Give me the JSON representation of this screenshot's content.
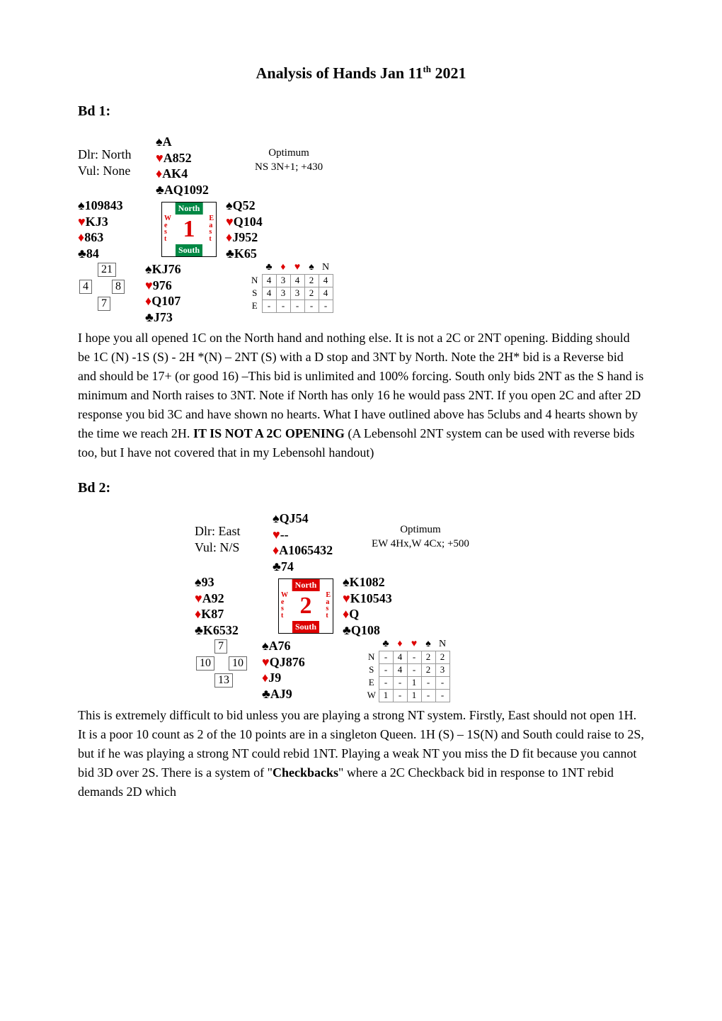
{
  "title": "Analysis of Hands Jan 11",
  "title_sup": "th",
  "title_year": " 2021",
  "boards": [
    {
      "label": "Bd 1:",
      "dealer": "Dlr: North",
      "vul": "Vul: None",
      "vul_class": "bg-none",
      "optimum1": "Optimum",
      "optimum2": "NS 3N+1; +430",
      "board_num": "1",
      "north": {
        "s": "A",
        "h": "A852",
        "d": "AK4",
        "c": "AQ1092"
      },
      "west": {
        "s": "109843",
        "h": "KJ3",
        "d": "863",
        "c": "84"
      },
      "east": {
        "s": "Q52",
        "h": "Q104",
        "d": "J952",
        "c": "K65"
      },
      "south": {
        "s": "KJ76",
        "h": "976",
        "d": "Q107",
        "c": "J73"
      },
      "hcp": {
        "n": "21",
        "w": "4",
        "e": "8",
        "s": "7"
      },
      "makeable": {
        "header": [
          "♣",
          "♦",
          "♥",
          "♠",
          "N"
        ],
        "rows": [
          [
            "N",
            "4",
            "3",
            "4",
            "2",
            "4"
          ],
          [
            "S",
            "4",
            "3",
            "3",
            "2",
            "4"
          ],
          [
            "E",
            "-",
            "-",
            "-",
            "-",
            "-"
          ]
        ]
      },
      "para": " I hope you all opened 1C on the North hand and nothing else. It is not a 2C or 2NT opening. Bidding should be 1C (N) -1S (S)  - 2H *(N) – 2NT (S) with a D stop and 3NT by North. Note the 2H* bid is a Reverse bid and should be 17+ (or good 16) –This bid is unlimited and 100% forcing. South only bids 2NT as the S hand is minimum and North raises to 3NT. Note if North has only 16 he would pass 2NT. If you open 2C and after 2D response you bid 3C and have shown no hearts. What I have outlined above has 5clubs and 4 hearts shown by the time we reach 2H. <b>IT IS NOT A 2C OPENING</b> (A Lebensohl 2NT system can be used with reverse bids too, but I have not covered that in my Lebensohl handout)"
    },
    {
      "label": "Bd 2:",
      "dealer": "Dlr: East",
      "vul": "Vul: N/S",
      "vul_class": "bg-ns",
      "optimum1": "Optimum",
      "optimum2": "EW 4Hx,W 4Cx; +500",
      "board_num": "2",
      "north": {
        "s": "QJ54",
        "h": "--",
        "d": "A1065432",
        "c": "74"
      },
      "west": {
        "s": "93",
        "h": "A92",
        "d": "K87",
        "c": "K6532"
      },
      "east": {
        "s": "K1082",
        "h": "K10543",
        "d": "Q",
        "c": "Q108"
      },
      "south": {
        "s": "A76",
        "h": "QJ876",
        "d": "J9",
        "c": "AJ9"
      },
      "hcp": {
        "n": "7",
        "w": "10",
        "e": "10",
        "s": "13"
      },
      "makeable": {
        "header": [
          "♣",
          "♦",
          "♥",
          "♠",
          "N"
        ],
        "rows": [
          [
            "N",
            "-",
            "4",
            "-",
            "2",
            "2"
          ],
          [
            "S",
            "-",
            "4",
            "-",
            "2",
            "3"
          ],
          [
            "E",
            "-",
            "-",
            "1",
            "-",
            "-"
          ],
          [
            "W",
            "1",
            "-",
            "1",
            "-",
            "-"
          ]
        ]
      },
      "para": "This is extremely difficult to bid unless you are playing a strong NT system. Firstly, East should not open 1H. It is a poor 10 count as 2 of the 10 points are in a singleton Queen. 1H (S) – 1S(N) and South could raise to 2S, but if he was playing a strong NT could rebid 1NT. Playing a weak NT you miss the D fit because you cannot bid 3D over 2S. There is a system of \"<b>Checkbacks</b>\" where a 2C Checkback bid in response to 1NT rebid demands 2D which"
    }
  ],
  "colors": {
    "red": "#d00",
    "black": "#000",
    "green_bg": "#084"
  }
}
